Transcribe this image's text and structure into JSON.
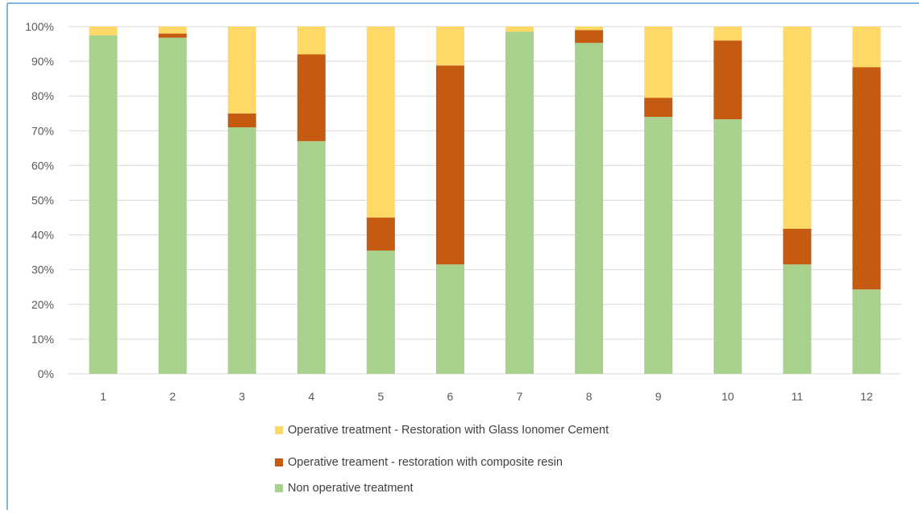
{
  "chart_data": {
    "type": "bar",
    "stacked": true,
    "percent": true,
    "categories": [
      "1",
      "2",
      "3",
      "4",
      "5",
      "6",
      "7",
      "8",
      "9",
      "10",
      "11",
      "12"
    ],
    "ylim": [
      0,
      100
    ],
    "ytick_labels": [
      "0%",
      "10%",
      "20%",
      "30%",
      "40%",
      "50%",
      "60%",
      "70%",
      "80%",
      "90%",
      "100%"
    ],
    "grid": true,
    "legend_position": "bottom",
    "series": [
      {
        "name": "Non operative treatment",
        "color": "#A9D18E",
        "values": [
          97.5,
          96.8,
          71.0,
          67.0,
          35.5,
          31.5,
          98.5,
          95.3,
          74.0,
          73.3,
          31.5,
          24.3
        ]
      },
      {
        "name": "Operative treament - restoration with composite resin",
        "color": "#C55A11",
        "values": [
          0.0,
          1.2,
          4.0,
          25.0,
          9.5,
          57.3,
          0.0,
          3.7,
          5.5,
          22.7,
          10.3,
          64.0
        ]
      },
      {
        "name": "Operative treatment - Restoration with Glass Ionomer Cement",
        "color": "#FFD966",
        "values": [
          2.5,
          2.0,
          25.0,
          8.0,
          55.0,
          11.2,
          1.5,
          1.0,
          20.5,
          4.0,
          58.2,
          11.7
        ]
      }
    ],
    "legend_order": [
      2,
      1,
      0
    ],
    "colors": {
      "grid": "#D9D9D9",
      "axis_text": "#595959",
      "frame": "#5B9BD5"
    }
  }
}
